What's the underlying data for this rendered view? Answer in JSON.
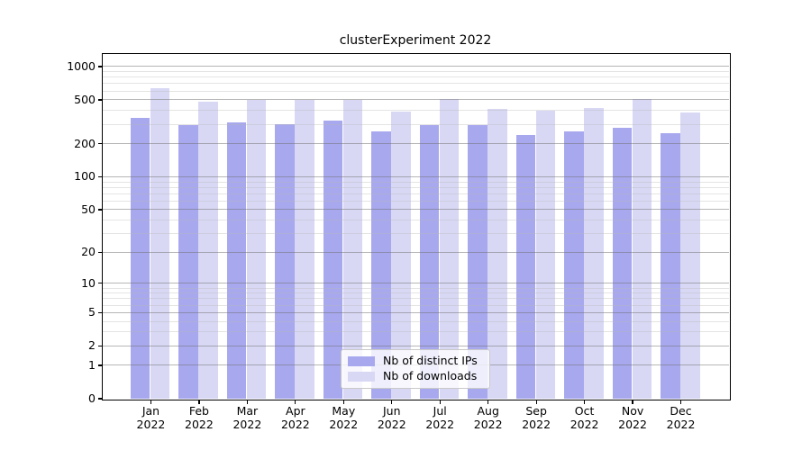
{
  "title": "clusterExperiment 2022",
  "y_axis": {
    "major_ticks": [
      {
        "label": "1000",
        "value": 1000
      },
      {
        "label": "500",
        "value": 500
      },
      {
        "label": "200",
        "value": 200
      },
      {
        "label": "100",
        "value": 100
      },
      {
        "label": "50",
        "value": 50
      },
      {
        "label": "20",
        "value": 20
      },
      {
        "label": "10",
        "value": 10
      },
      {
        "label": "5",
        "value": 5
      },
      {
        "label": "2",
        "value": 2
      },
      {
        "label": "1",
        "value": 1
      },
      {
        "label": "0",
        "value": 0
      }
    ],
    "minor_tick_values": [
      900,
      800,
      700,
      600,
      400,
      300,
      90,
      80,
      70,
      60,
      40,
      30,
      9,
      8,
      7,
      6,
      4,
      3
    ]
  },
  "x_axis": {
    "months": [
      {
        "line1": "Jan",
        "line2": "2022"
      },
      {
        "line1": "Feb",
        "line2": "2022"
      },
      {
        "line1": "Mar",
        "line2": "2022"
      },
      {
        "line1": "Apr",
        "line2": "2022"
      },
      {
        "line1": "May",
        "line2": "2022"
      },
      {
        "line1": "Jun",
        "line2": "2022"
      },
      {
        "line1": "Jul",
        "line2": "2022"
      },
      {
        "line1": "Aug",
        "line2": "2022"
      },
      {
        "line1": "Sep",
        "line2": "2022"
      },
      {
        "line1": "Oct",
        "line2": "2022"
      },
      {
        "line1": "Nov",
        "line2": "2022"
      },
      {
        "line1": "Dec",
        "line2": "2022"
      }
    ]
  },
  "chart_data": {
    "type": "bar",
    "title": "clusterExperiment 2022",
    "categories": [
      "Jan 2022",
      "Feb 2022",
      "Mar 2022",
      "Apr 2022",
      "May 2022",
      "Jun 2022",
      "Jul 2022",
      "Aug 2022",
      "Sep 2022",
      "Oct 2022",
      "Nov 2022",
      "Dec 2022"
    ],
    "series": [
      {
        "name": "Nb of distinct IPs",
        "color": "#a8a8ee",
        "values": [
          340,
          293,
          309,
          296,
          319,
          254,
          295,
          291,
          238,
          254,
          278,
          249
        ]
      },
      {
        "name": "Nb of downloads",
        "color": "#d8d8f5",
        "values": [
          630,
          479,
          494,
          494,
          494,
          388,
          508,
          413,
          396,
          418,
          505,
          383
        ]
      }
    ],
    "y_scale": "log1p",
    "ylim": [
      0,
      1100
    ],
    "y_major_ticks": [
      0,
      1,
      2,
      5,
      10,
      20,
      50,
      100,
      200,
      500,
      1000
    ],
    "grid": true,
    "legend_position": "lower center",
    "xlabel": "",
    "ylabel": ""
  }
}
